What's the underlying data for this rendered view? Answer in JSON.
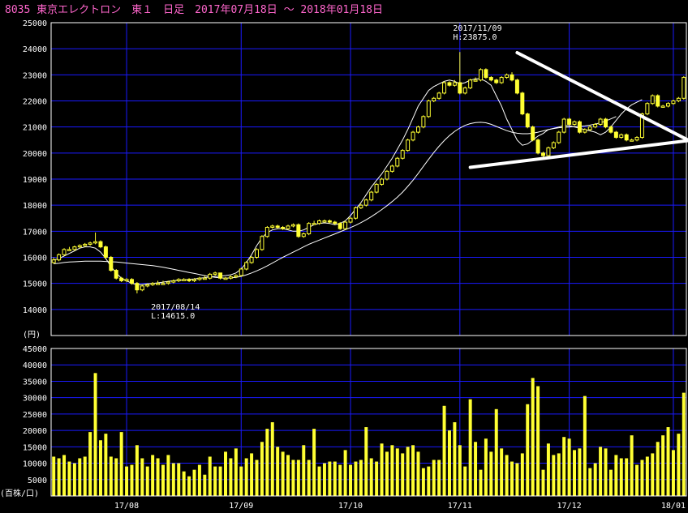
{
  "header": {
    "title": "8035 東京エレクトロン　東１　日足　2017年07月18日 〜 2018年01月18日"
  },
  "colors": {
    "background": "#000000",
    "frame": "#ffffff",
    "grid": "#1a1aff",
    "candle": "#ffff33",
    "volume": "#ffff33",
    "ma": "#ffffff",
    "title": "#ff66cc",
    "trendline": "#ffffff"
  },
  "chart_data": [
    {
      "type": "candlestick",
      "title": "8035 東京エレクトロン　東１　日足　2017年07月18日 〜 2018年01月18日",
      "y_unit_label": "(円)",
      "ylim": [
        13000,
        25000
      ],
      "yticks": [
        14000,
        15000,
        16000,
        17000,
        18000,
        19000,
        20000,
        21000,
        22000,
        23000,
        24000,
        25000
      ],
      "month_labels": [
        {
          "label": "17/08",
          "index": 14
        },
        {
          "label": "17/09",
          "index": 36
        },
        {
          "label": "17/10",
          "index": 57
        },
        {
          "label": "17/11",
          "index": 78
        },
        {
          "label": "17/12",
          "index": 99
        },
        {
          "label": "18/01",
          "index": 119
        }
      ],
      "annotations": [
        {
          "index": 77,
          "price": 23875,
          "lines": [
            "2017/11/09",
            "H:23875.0"
          ],
          "align": "left"
        },
        {
          "index": 19,
          "price": 14615,
          "lines": [
            "2017/08/14",
            "L:14615.0"
          ],
          "align": "left"
        }
      ],
      "trendlines": [
        {
          "from": {
            "index": 89,
            "price": 23850
          },
          "to": {
            "index": 122,
            "price": 20480
          }
        },
        {
          "from": {
            "index": 80,
            "price": 19450
          },
          "to": {
            "index": 122,
            "price": 20480
          }
        }
      ],
      "candles": {
        "open": [
          15800,
          15900,
          16100,
          16300,
          16300,
          16400,
          16450,
          16500,
          16550,
          16600,
          16400,
          16000,
          15500,
          15200,
          15100,
          15150,
          15000,
          14750,
          14900,
          14950,
          15000,
          15000,
          15000,
          15050,
          15100,
          15150,
          15150,
          15100,
          15150,
          15200,
          15200,
          15350,
          15400,
          15200,
          15200,
          15250,
          15300,
          15550,
          15800,
          16000,
          16300,
          16800,
          17150,
          17200,
          17150,
          17100,
          17200,
          17250,
          16800,
          16900,
          17300,
          17300,
          17400,
          17400,
          17350,
          17300,
          17100,
          17350,
          17500,
          17900,
          18000,
          18200,
          18500,
          18800,
          19000,
          19300,
          19500,
          19800,
          20100,
          20500,
          20800,
          21000,
          21400,
          22000,
          22100,
          22300,
          22700,
          22600,
          22700,
          22300,
          22500,
          22800,
          22800,
          23200,
          22900,
          22800,
          22700,
          22900,
          23000,
          22800,
          22300,
          21500,
          21000,
          20500,
          20000,
          19900,
          20200,
          20400,
          20800,
          21300,
          21100,
          21200,
          20800,
          20900,
          21000,
          21100,
          21300,
          21000,
          20800,
          20600,
          20700,
          20500,
          20500,
          20600,
          21500,
          21900,
          22200,
          21800,
          21800,
          21900,
          22000,
          22100
        ],
        "close": [
          15900,
          16100,
          16300,
          16300,
          16400,
          16450,
          16500,
          16550,
          16600,
          16400,
          16000,
          15500,
          15200,
          15100,
          15150,
          15000,
          14750,
          14900,
          14950,
          15000,
          15000,
          15000,
          15050,
          15100,
          15150,
          15150,
          15100,
          15150,
          15200,
          15200,
          15350,
          15400,
          15200,
          15200,
          15250,
          15300,
          15550,
          15800,
          16000,
          16300,
          16800,
          17150,
          17200,
          17150,
          17100,
          17200,
          17250,
          16800,
          16900,
          17300,
          17300,
          17400,
          17400,
          17350,
          17300,
          17100,
          17350,
          17500,
          17900,
          18000,
          18200,
          18500,
          18800,
          19000,
          19300,
          19500,
          19800,
          20100,
          20500,
          20800,
          21000,
          21400,
          22000,
          22100,
          22300,
          22700,
          22600,
          22700,
          22300,
          22500,
          22800,
          22800,
          23200,
          22900,
          22800,
          22700,
          22900,
          23000,
          22800,
          22300,
          21500,
          21000,
          20500,
          20000,
          19900,
          20200,
          20400,
          20800,
          21300,
          21100,
          21200,
          20800,
          20900,
          21000,
          21100,
          21300,
          21000,
          20800,
          20600,
          20700,
          20500,
          20500,
          20600,
          21500,
          21900,
          22200,
          21800,
          21800,
          21900,
          22000,
          22100,
          22900
        ],
        "high": [
          16000,
          16150,
          16350,
          16400,
          16450,
          16500,
          16550,
          16600,
          16950,
          16650,
          16450,
          16050,
          15550,
          15250,
          15200,
          15200,
          15050,
          14950,
          15000,
          15050,
          15100,
          15100,
          15100,
          15150,
          15200,
          15200,
          15200,
          15200,
          15250,
          15300,
          15400,
          15450,
          15400,
          15250,
          15300,
          15350,
          15600,
          15850,
          16050,
          16350,
          16850,
          17200,
          17250,
          17250,
          17200,
          17250,
          17300,
          17300,
          16950,
          17350,
          17400,
          17450,
          17450,
          17450,
          17400,
          17350,
          17400,
          17550,
          17950,
          18050,
          18250,
          18550,
          18850,
          19050,
          19350,
          19550,
          19850,
          20150,
          20550,
          20850,
          21050,
          21450,
          22050,
          22150,
          22350,
          22750,
          22750,
          22800,
          23875,
          22550,
          22850,
          22900,
          23250,
          23250,
          22950,
          22850,
          22950,
          23050,
          23100,
          22850,
          22350,
          21550,
          21050,
          20550,
          20050,
          20250,
          20450,
          20850,
          21350,
          21350,
          21250,
          21250,
          20950,
          21050,
          21150,
          21350,
          21350,
          21050,
          20850,
          20750,
          20750,
          20550,
          20650,
          21550,
          21950,
          22250,
          22250,
          21850,
          21950,
          22050,
          22150,
          22950
        ],
        "low": [
          15750,
          15850,
          16050,
          16250,
          16250,
          16350,
          16400,
          16450,
          16500,
          16350,
          15950,
          15450,
          15150,
          15050,
          15050,
          14950,
          14615,
          14700,
          14850,
          14900,
          14950,
          14950,
          14950,
          15000,
          15050,
          15100,
          15050,
          15050,
          15100,
          15150,
          15150,
          15300,
          15150,
          15150,
          15150,
          15200,
          15250,
          15500,
          15750,
          15950,
          16250,
          16750,
          17100,
          17100,
          17050,
          17050,
          17150,
          16750,
          16750,
          16850,
          17250,
          17250,
          17350,
          17300,
          17250,
          17050,
          17050,
          17300,
          17450,
          17850,
          17950,
          18150,
          18450,
          18750,
          18950,
          19250,
          19450,
          19750,
          20050,
          20450,
          20750,
          20950,
          21350,
          21950,
          22050,
          22250,
          22550,
          22550,
          22250,
          22250,
          22450,
          22750,
          22750,
          22850,
          22750,
          22650,
          22650,
          22850,
          22750,
          22250,
          21450,
          20950,
          20450,
          19950,
          19850,
          19850,
          20150,
          20350,
          20750,
          21050,
          21050,
          20750,
          20750,
          20850,
          20950,
          21050,
          20950,
          20750,
          20550,
          20550,
          20450,
          20450,
          20450,
          20550,
          21450,
          21850,
          21750,
          21750,
          21750,
          21850,
          21950,
          22050
        ]
      }
    },
    {
      "type": "bar",
      "y_unit_label": "(百株/口)",
      "ylim": [
        0,
        45000
      ],
      "yticks": [
        5000,
        10000,
        15000,
        20000,
        25000,
        30000,
        35000,
        40000,
        45000
      ],
      "values": [
        12000,
        11500,
        12500,
        10500,
        10000,
        11500,
        12000,
        19500,
        37500,
        17000,
        19000,
        12000,
        11500,
        19500,
        9000,
        9500,
        15500,
        11500,
        9000,
        12500,
        11500,
        9500,
        12500,
        10000,
        10000,
        7500,
        6000,
        8000,
        9500,
        6500,
        12000,
        9000,
        9000,
        13500,
        11500,
        14500,
        9000,
        11500,
        13000,
        11000,
        16500,
        20500,
        22500,
        15000,
        13500,
        12500,
        11000,
        11000,
        15500,
        11000,
        20500,
        9000,
        10000,
        10500,
        10500,
        9500,
        14000,
        9500,
        10500,
        11000,
        21000,
        11500,
        10500,
        16000,
        13500,
        15500,
        14500,
        13000,
        15000,
        15500,
        13500,
        8500,
        9000,
        11000,
        11000,
        27500,
        20000,
        22500,
        15500,
        9000,
        29500,
        16500,
        8000,
        17500,
        13500,
        26500,
        14500,
        12500,
        10500,
        10000,
        13000,
        28000,
        36000,
        33500,
        8000,
        16000,
        12500,
        13000,
        18000,
        17500,
        14000,
        14500,
        30500,
        8500,
        10000,
        15000,
        14500,
        8000,
        12500,
        11500,
        11500,
        18500,
        9500,
        11000,
        12000,
        13000,
        16500,
        18500,
        21000,
        14000,
        19000,
        31500
      ]
    }
  ],
  "moving_averages": {
    "ma_short": {
      "values": [
        15900,
        15950,
        16050,
        16150,
        16250,
        16350,
        16400,
        16400,
        16350,
        16200,
        15950,
        15650,
        15400,
        15200,
        15100,
        15000,
        14950,
        14950,
        14980,
        15000,
        15020,
        15050,
        15080,
        15100,
        15120,
        15130,
        15150,
        15170,
        15200,
        15220,
        15250,
        15270,
        15280,
        15300,
        15330,
        15400,
        15550,
        15800,
        16100,
        16450,
        16750,
        16950,
        17050,
        17100,
        17100,
        17050,
        17000,
        17000,
        17050,
        17150,
        17250,
        17300,
        17320,
        17300,
        17250,
        17300,
        17400,
        17600,
        17850,
        18100,
        18400,
        18700,
        18950,
        19200,
        19500,
        19800,
        20150,
        20500,
        20900,
        21350,
        21800,
        22100,
        22400,
        22550,
        22650,
        22750,
        22800,
        22750,
        22650,
        22700,
        22800,
        22850,
        22850,
        22750,
        22600,
        22200,
        21800,
        21300,
        20900,
        20500,
        20300,
        20350,
        20500,
        20650,
        20750,
        20900,
        20950,
        21000,
        21050,
        21050,
        21000,
        20950,
        20900,
        20850,
        20800,
        20700,
        20800,
        21000,
        21250,
        21500,
        21700,
        21850,
        21950,
        22050
      ]
    },
    "ma_long": {
      "values": [
        15750,
        15770,
        15800,
        15820,
        15830,
        15840,
        15850,
        15850,
        15850,
        15850,
        15840,
        15830,
        15820,
        15800,
        15780,
        15760,
        15740,
        15720,
        15700,
        15680,
        15650,
        15620,
        15580,
        15540,
        15500,
        15460,
        15420,
        15380,
        15340,
        15300,
        15260,
        15230,
        15210,
        15200,
        15210,
        15230,
        15270,
        15330,
        15400,
        15480,
        15570,
        15670,
        15780,
        15890,
        16000,
        16100,
        16200,
        16300,
        16400,
        16500,
        16580,
        16660,
        16740,
        16820,
        16900,
        16980,
        17060,
        17140,
        17230,
        17330,
        17440,
        17560,
        17690,
        17830,
        17980,
        18140,
        18310,
        18500,
        18720,
        18960,
        19220,
        19490,
        19760,
        20020,
        20260,
        20480,
        20670,
        20830,
        20960,
        21060,
        21130,
        21170,
        21180,
        21160,
        21100,
        21020,
        20940,
        20860,
        20800,
        20760,
        20740,
        20740,
        20760,
        20800,
        20850,
        20900,
        20940,
        20970,
        20990,
        21000,
        21010,
        21020,
        21040,
        21070,
        21110,
        21160,
        21230,
        21310,
        21400
      ]
    }
  }
}
